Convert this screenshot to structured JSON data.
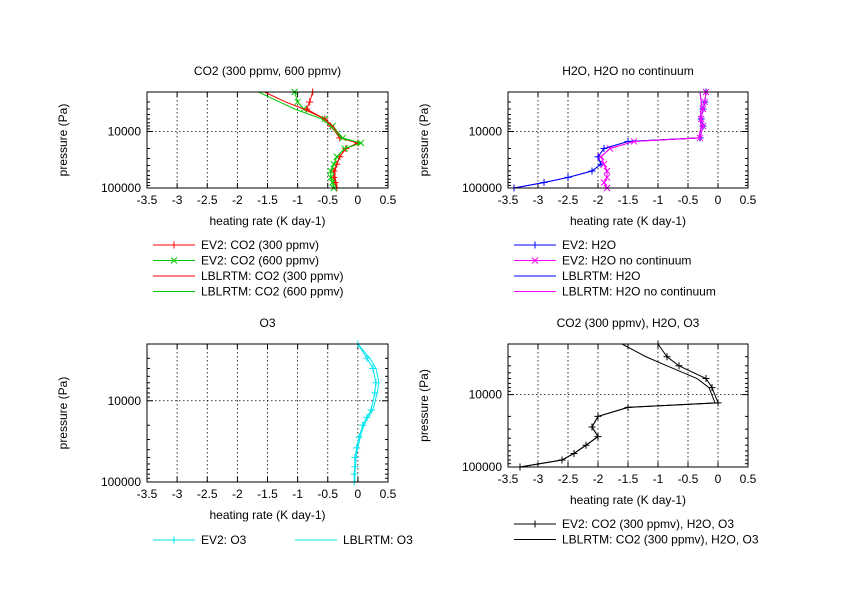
{
  "chart_data": [
    {
      "type": "line",
      "title": "CO2 (300 ppmv, 600 ppmv)",
      "xlabel": "heating rate (K day-1)",
      "ylabel": "pressure (Pa)",
      "xlim": [
        -3.5,
        0.5
      ],
      "xticks": [
        "-3.5",
        "-3",
        "-2.5",
        "-2",
        "-1.5",
        "-1",
        "-0.5",
        "0",
        "0.5"
      ],
      "yscale": "log",
      "ylim": [
        100000,
        2000
      ],
      "yticks": [
        "10000",
        "100000"
      ],
      "grid": true,
      "legend_position": "below",
      "series": [
        {
          "name": "EV2: CO2 (300 ppmv)",
          "color": "#ff0000",
          "marker": "+",
          "x": [
            -0.75,
            -0.8,
            -0.85,
            -0.55,
            -0.45,
            -0.3,
            0.0,
            -0.2,
            -0.3,
            -0.35,
            -0.4,
            -0.4,
            -0.38,
            -0.35
          ],
          "y": [
            2000,
            3000,
            4000,
            6000,
            8000,
            13000,
            16000,
            20000,
            28000,
            38000,
            50000,
            65000,
            80000,
            100000
          ]
        },
        {
          "name": "EV2: CO2 (600 ppmv)",
          "color": "#00cc00",
          "marker": "x",
          "x": [
            -1.05,
            -1.0,
            -0.9,
            -0.55,
            -0.42,
            -0.25,
            0.05,
            -0.22,
            -0.35,
            -0.4,
            -0.45,
            -0.45,
            -0.42,
            -0.4
          ],
          "y": [
            2000,
            3000,
            4000,
            6000,
            8000,
            13000,
            16000,
            20000,
            28000,
            38000,
            50000,
            65000,
            80000,
            100000
          ]
        },
        {
          "name": "LBLRTM: CO2 (300 ppmv)",
          "color": "#ff0000",
          "marker": "",
          "x": [
            -1.55,
            -1.2,
            -0.9,
            -0.55,
            -0.42,
            -0.28,
            0.0,
            -0.2,
            -0.3,
            -0.35,
            -0.38,
            -0.38,
            -0.36,
            -0.34
          ],
          "y": [
            2000,
            3000,
            4000,
            6000,
            8000,
            13000,
            16000,
            20000,
            28000,
            38000,
            50000,
            65000,
            80000,
            100000
          ]
        },
        {
          "name": "LBLRTM: CO2 (600 ppmv)",
          "color": "#00cc00",
          "marker": "",
          "x": [
            -1.65,
            -1.3,
            -1.05,
            -0.6,
            -0.45,
            -0.28,
            0.05,
            -0.22,
            -0.35,
            -0.4,
            -0.45,
            -0.45,
            -0.42,
            -0.4
          ],
          "y": [
            2000,
            3000,
            4000,
            6000,
            8000,
            13000,
            16000,
            20000,
            28000,
            38000,
            50000,
            65000,
            80000,
            100000
          ]
        }
      ]
    },
    {
      "type": "line",
      "title": "H2O, H2O no continuum",
      "xlabel": "heating rate (K day-1)",
      "ylabel": "pressure (Pa)",
      "xlim": [
        -3.5,
        0.5
      ],
      "xticks": [
        "-3.5",
        "-3",
        "-2.5",
        "-2",
        "-1.5",
        "-1",
        "-0.5",
        "0",
        "0.5"
      ],
      "yscale": "log",
      "ylim": [
        100000,
        2000
      ],
      "yticks": [
        "10000",
        "100000"
      ],
      "grid": true,
      "legend_position": "below",
      "series": [
        {
          "name": "EV2: H2O",
          "color": "#0000ff",
          "marker": "+",
          "x": [
            -0.2,
            -0.22,
            -0.25,
            -0.28,
            -0.25,
            -0.3,
            -1.5,
            -1.9,
            -2.0,
            -1.95,
            -2.1,
            -2.5,
            -2.9,
            -3.4
          ],
          "y": [
            2000,
            3000,
            4000,
            6000,
            8000,
            13000,
            15000,
            20000,
            28000,
            38000,
            50000,
            65000,
            80000,
            100000
          ]
        },
        {
          "name": "EV2: H2O no continuum",
          "color": "#ff00ff",
          "marker": "x",
          "x": [
            -0.2,
            -0.22,
            -0.25,
            -0.28,
            -0.25,
            -0.3,
            -1.4,
            -1.8,
            -1.95,
            -1.9,
            -1.85,
            -1.85,
            -1.9,
            -1.85
          ],
          "y": [
            2000,
            3000,
            4000,
            6000,
            8000,
            13000,
            15000,
            20000,
            28000,
            38000,
            50000,
            65000,
            80000,
            100000
          ]
        },
        {
          "name": "LBLRTM: H2O",
          "color": "#0000ff",
          "marker": "",
          "x": [
            -0.3,
            -0.28,
            -0.28,
            -0.3,
            -0.28,
            -0.32,
            -1.5,
            -1.9,
            -2.0,
            -1.95,
            -2.1,
            -2.5,
            -2.9,
            -3.4
          ],
          "y": [
            2000,
            3000,
            4000,
            6000,
            8000,
            13000,
            15000,
            20000,
            28000,
            38000,
            50000,
            65000,
            80000,
            100000
          ]
        },
        {
          "name": "LBLRTM: H2O no continuum",
          "color": "#ff00ff",
          "marker": "",
          "x": [
            -0.3,
            -0.28,
            -0.28,
            -0.3,
            -0.28,
            -0.32,
            -1.4,
            -1.8,
            -1.95,
            -1.9,
            -1.85,
            -1.85,
            -1.9,
            -1.85
          ],
          "y": [
            2000,
            3000,
            4000,
            6000,
            8000,
            13000,
            15000,
            20000,
            28000,
            38000,
            50000,
            65000,
            80000,
            100000
          ]
        }
      ]
    },
    {
      "type": "line",
      "title": "O3",
      "xlabel": "heating rate (K day-1)",
      "ylabel": "pressure (Pa)",
      "xlim": [
        -3.5,
        0.5
      ],
      "xticks": [
        "-3.5",
        "-3",
        "-2.5",
        "-2",
        "-1.5",
        "-1",
        "-0.5",
        "0",
        "0.5"
      ],
      "yscale": "log",
      "ylim": [
        100000,
        2000
      ],
      "yticks": [
        "10000",
        "100000"
      ],
      "grid": true,
      "legend_position": "below",
      "series": [
        {
          "name": "EV2: O3",
          "color": "#00e5ee",
          "marker": "+",
          "x": [
            0.0,
            0.15,
            0.25,
            0.3,
            0.28,
            0.22,
            0.15,
            0.08,
            0.02,
            -0.02,
            -0.05,
            -0.05,
            -0.06,
            -0.06
          ],
          "y": [
            2000,
            3000,
            4000,
            6000,
            8000,
            13000,
            16000,
            20000,
            28000,
            38000,
            50000,
            65000,
            80000,
            100000
          ]
        },
        {
          "name": "LBLRTM: O3",
          "color": "#00e5ee",
          "marker": "",
          "x": [
            0.0,
            0.2,
            0.3,
            0.35,
            0.32,
            0.25,
            0.17,
            0.1,
            0.04,
            0.0,
            -0.03,
            -0.04,
            -0.05,
            -0.05
          ],
          "y": [
            2000,
            3000,
            4000,
            6000,
            8000,
            13000,
            16000,
            20000,
            28000,
            38000,
            50000,
            65000,
            80000,
            100000
          ]
        }
      ]
    },
    {
      "type": "line",
      "title": "CO2 (300 ppmv), H2O, O3",
      "xlabel": "heating rate (K day-1)",
      "ylabel": "pressure (Pa)",
      "xlim": [
        -3.5,
        0.5
      ],
      "xticks": [
        "-3.5",
        "-3",
        "-2.5",
        "-2",
        "-1.5",
        "-1",
        "-0.5",
        "0",
        "0.5"
      ],
      "yscale": "log",
      "ylim": [
        100000,
        2000
      ],
      "yticks": [
        "10000",
        "100000"
      ],
      "grid": true,
      "legend_position": "below",
      "series": [
        {
          "name": "EV2: CO2 (300 ppmv), H2O, O3",
          "color": "#000000",
          "marker": "+",
          "x": [
            -1.0,
            -0.85,
            -0.65,
            -0.2,
            -0.1,
            0.0,
            -1.5,
            -2.0,
            -2.1,
            -2.0,
            -2.2,
            -2.4,
            -2.6,
            -3.3
          ],
          "y": [
            2000,
            3000,
            4000,
            6000,
            8000,
            13000,
            15000,
            20000,
            28000,
            38000,
            50000,
            65000,
            80000,
            100000
          ]
        },
        {
          "name": "LBLRTM: CO2 (300 ppmv), H2O, O3",
          "color": "#000000",
          "marker": "",
          "x": [
            -1.6,
            -1.2,
            -0.85,
            -0.35,
            -0.15,
            -0.05,
            -1.5,
            -2.0,
            -2.1,
            -2.0,
            -2.2,
            -2.4,
            -2.6,
            -3.3
          ],
          "y": [
            2000,
            3000,
            4000,
            6000,
            8000,
            13000,
            15000,
            20000,
            28000,
            38000,
            50000,
            65000,
            80000,
            100000
          ]
        }
      ]
    }
  ]
}
